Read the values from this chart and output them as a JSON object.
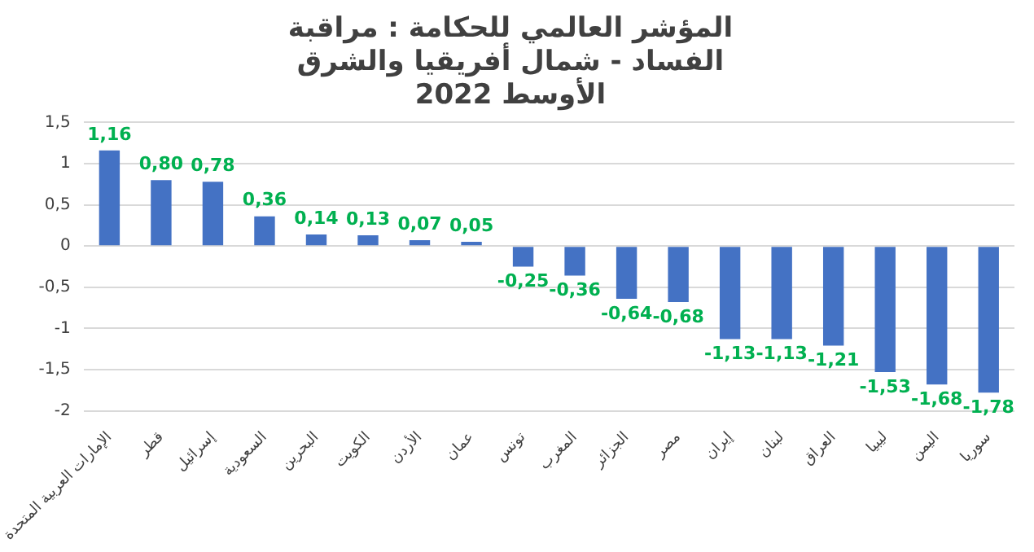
{
  "chart_data": {
    "type": "bar",
    "title": "المؤشر العالمي للحكامة : مراقبة الفساد - شمال أفريقيا والشرق الأوسط 2022",
    "categories": [
      "الإمارات العربية المتحدة",
      "قطر",
      "إسرائيل",
      "السعودية",
      "البحرين",
      "الكويت",
      "الأردن",
      "عمان",
      "تونس",
      "المغرب",
      "الجزائر",
      "مصر",
      "إيران",
      "لبنان",
      "العراق",
      "ليبيا",
      "اليمن",
      "سوريا"
    ],
    "values": [
      1.16,
      0.8,
      0.78,
      0.36,
      0.14,
      0.13,
      0.07,
      0.05,
      -0.25,
      -0.36,
      -0.64,
      -0.68,
      -1.13,
      -1.13,
      -1.21,
      -1.53,
      -1.68,
      -1.78
    ],
    "value_labels": [
      "1,16",
      "0,80",
      "0,78",
      "0,36",
      "0,14",
      "0,13",
      "0,07",
      "0,05",
      "-0,25",
      "-0,36",
      "-0,64",
      "-0,68",
      "-1,13",
      "-1,13",
      "-1,21",
      "-1,53",
      "-1,68",
      "-1,78"
    ],
    "color": "#4472c4",
    "ylim": [
      -2,
      1.5
    ],
    "yticks": [
      {
        "value": -2,
        "label": "-2"
      },
      {
        "value": -1.5,
        "label": "-1,5"
      },
      {
        "value": -1,
        "label": "-1"
      },
      {
        "value": -0.5,
        "label": "-0,5"
      },
      {
        "value": 0,
        "label": "0"
      },
      {
        "value": 0.5,
        "label": "0,5"
      },
      {
        "value": 1,
        "label": "1"
      },
      {
        "value": 1.5,
        "label": "1,5"
      }
    ],
    "grid": "y",
    "legend": false
  }
}
